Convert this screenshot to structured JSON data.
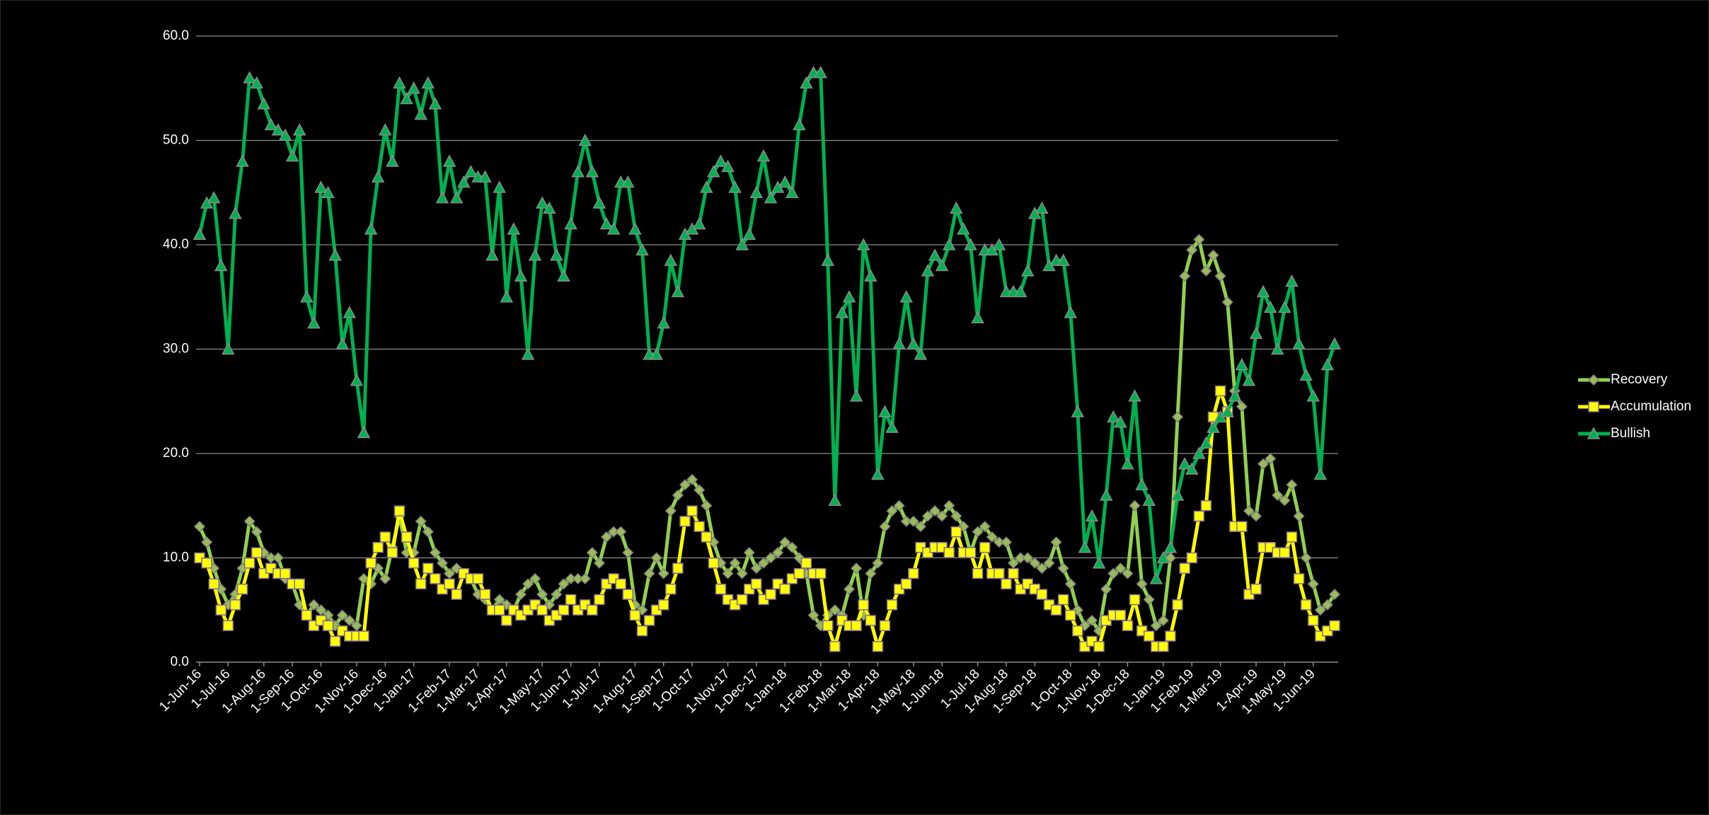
{
  "chart_data": {
    "type": "line",
    "grid": true,
    "legend": "right",
    "ylim": [
      0,
      60
    ],
    "yticks": [
      {
        "value": 0,
        "label": "0.0"
      },
      {
        "value": 10,
        "label": "10.0"
      },
      {
        "value": 20,
        "label": "20.0"
      },
      {
        "value": 30,
        "label": "30.0"
      },
      {
        "value": 40,
        "label": "40.0"
      },
      {
        "value": 50,
        "label": "50.0"
      },
      {
        "value": 60,
        "label": "60.0"
      }
    ],
    "categories": [
      "1-Jun-16",
      null,
      null,
      null,
      "1-Jul-16",
      null,
      null,
      null,
      null,
      "1-Aug-16",
      null,
      null,
      null,
      "1-Sep-16",
      null,
      null,
      null,
      "1-Oct-16",
      null,
      null,
      null,
      null,
      "1-Nov-16",
      null,
      null,
      null,
      "1-Dec-16",
      null,
      null,
      null,
      "1-Jan-17",
      null,
      null,
      null,
      null,
      "1-Feb-17",
      null,
      null,
      null,
      "1-Mar-17",
      null,
      null,
      null,
      "1-Apr-17",
      null,
      null,
      null,
      null,
      "1-May-17",
      null,
      null,
      null,
      "1-Jun-17",
      null,
      null,
      null,
      "1-Jul-17",
      null,
      null,
      null,
      null,
      "1-Aug-17",
      null,
      null,
      null,
      "1-Sep-17",
      null,
      null,
      null,
      "1-Oct-17",
      null,
      null,
      null,
      null,
      "1-Nov-17",
      null,
      null,
      null,
      "1-Dec-17",
      null,
      null,
      null,
      "1-Jan-18",
      null,
      null,
      null,
      null,
      "1-Feb-18",
      null,
      null,
      null,
      "1-Mar-18",
      null,
      null,
      null,
      "1-Apr-18",
      null,
      null,
      null,
      null,
      "1-May-18",
      null,
      null,
      null,
      "1-Jun-18",
      null,
      null,
      null,
      null,
      "1-Jul-18",
      null,
      null,
      null,
      "1-Aug-18",
      null,
      null,
      null,
      "1-Sep-18",
      null,
      null,
      null,
      null,
      "1-Oct-18",
      null,
      null,
      null,
      "1-Nov-18",
      null,
      null,
      null,
      "1-Dec-18",
      null,
      null,
      null,
      null,
      "1-Jan-19",
      null,
      null,
      null,
      "1-Feb-19",
      null,
      null,
      null,
      "1-Mar-19",
      null,
      null,
      null,
      null,
      "1-Apr-19",
      null,
      null,
      null,
      "1-May-19",
      null,
      null,
      null,
      "1-Jun-19",
      null,
      null,
      null
    ],
    "series": [
      {
        "name": "Recovery",
        "color": "#92d050",
        "marker": "diamond",
        "marker_color": "#9bbb59",
        "marker_edge": "#7f7f7f",
        "values": [
          13,
          11.5,
          9,
          7,
          5.5,
          6.5,
          9,
          13.5,
          12.5,
          10.5,
          10,
          10,
          8,
          7.5,
          5.5,
          4.5,
          5.5,
          5,
          4.5,
          3.5,
          4.5,
          4,
          3.5,
          8,
          7.5,
          9,
          8,
          11,
          14,
          10.5,
          10.5,
          13.5,
          12.5,
          10.5,
          9.5,
          8.5,
          9,
          8.5,
          8,
          6.5,
          6,
          5,
          6,
          5.5,
          5,
          6.5,
          7.5,
          8,
          6.5,
          5.5,
          6.5,
          7.5,
          8,
          8,
          8,
          10.5,
          9.5,
          12,
          12.5,
          12.5,
          10.5,
          5.5,
          5,
          8.5,
          10,
          8.5,
          14.5,
          16,
          17,
          17.5,
          16.5,
          15,
          11.5,
          9.5,
          8.5,
          9.5,
          8.5,
          10.5,
          9,
          9.5,
          10,
          10.5,
          11.5,
          11,
          10,
          8.5,
          4.5,
          3.5,
          4.5,
          5,
          4.5,
          7,
          9,
          4.5,
          8.5,
          9.5,
          13,
          14.5,
          15,
          13.5,
          13.5,
          13,
          14,
          14.5,
          14,
          15,
          14,
          13,
          10.5,
          12.5,
          13,
          12,
          11.5,
          11.5,
          9.5,
          10,
          10,
          9.5,
          9,
          9.5,
          11.5,
          9,
          7.5,
          5,
          3.5,
          4,
          3,
          7,
          8.5,
          9,
          8.5,
          15,
          7.5,
          6,
          3.5,
          4,
          10,
          23.5,
          37,
          39.5,
          40.5,
          37.5,
          39,
          37,
          34.5,
          26,
          24.5,
          14.5,
          14,
          19,
          19.5,
          16,
          15.5,
          17,
          14,
          10,
          7.5,
          5,
          5.5,
          6.5
        ]
      },
      {
        "name": "Accumulation",
        "color": "#ffff00",
        "marker": "square",
        "marker_color": "#ffff00",
        "marker_edge": "#8064a2",
        "values": [
          10,
          9.5,
          7.5,
          5,
          3.5,
          5.5,
          7,
          9.5,
          10.5,
          8.5,
          9,
          8.5,
          8.5,
          7.5,
          7.5,
          4.5,
          3.5,
          4,
          3.5,
          2,
          3,
          2.5,
          2.5,
          2.5,
          9.5,
          11,
          12,
          10.5,
          14.5,
          12,
          9.5,
          7.5,
          9,
          8,
          7,
          7.5,
          6.5,
          8.5,
          8,
          8,
          6.5,
          5,
          5,
          4,
          5,
          4.5,
          5,
          5.5,
          5,
          4,
          4.5,
          5,
          6,
          5,
          5.5,
          5,
          6,
          7.5,
          8,
          7.5,
          6.5,
          4.5,
          3,
          4,
          5,
          5.5,
          7,
          9,
          13.5,
          14.5,
          13,
          12,
          9.5,
          7,
          6,
          5.5,
          6,
          7,
          7.5,
          6,
          6.5,
          7.5,
          7,
          8,
          8.5,
          9.5,
          8.5,
          8.5,
          3.5,
          1.5,
          4,
          3.5,
          3.5,
          5.5,
          4,
          1.5,
          3.5,
          5.5,
          7,
          7.5,
          8.5,
          11,
          10.5,
          11,
          11,
          10.5,
          12.5,
          10.5,
          10.5,
          8.5,
          11,
          8.5,
          8.5,
          7.5,
          8.5,
          7,
          7.5,
          7,
          6.5,
          5.5,
          5,
          6,
          4.5,
          3,
          1.5,
          2,
          1.5,
          4,
          4.5,
          4.5,
          3.5,
          6,
          3,
          2.5,
          1.5,
          1.5,
          2.5,
          5.5,
          9,
          10,
          14,
          15,
          23.5,
          26,
          24,
          13,
          13,
          6.5,
          7,
          11,
          11,
          10.5,
          10.5,
          12,
          8,
          5.5,
          4,
          2.5,
          3,
          3.5
        ]
      },
      {
        "name": "Bullish",
        "color": "#00b050",
        "marker": "triangle",
        "marker_color": "#00b050",
        "marker_edge": "#8c8c8c",
        "values": [
          41,
          44,
          44.5,
          38,
          30,
          43,
          48,
          56,
          55.5,
          53.5,
          51.5,
          51,
          50.5,
          48.5,
          51,
          35,
          32.5,
          45.5,
          45,
          39,
          30.5,
          33.5,
          27,
          22,
          41.5,
          46.5,
          51,
          48,
          55.5,
          54,
          55,
          52.5,
          55.5,
          53.5,
          44.5,
          48,
          44.5,
          46,
          47,
          46.5,
          46.5,
          39,
          45.5,
          35,
          41.5,
          37,
          29.5,
          39,
          44,
          43.5,
          39,
          37,
          42,
          47,
          50,
          47,
          44,
          42,
          41.5,
          46,
          46,
          41.5,
          39.5,
          29.5,
          29.5,
          32.5,
          38.5,
          35.5,
          41,
          41.5,
          42,
          45.5,
          47,
          48,
          47.5,
          45.5,
          40,
          41,
          45,
          48.5,
          44.5,
          45.5,
          46,
          45,
          51.5,
          55.5,
          56.5,
          56.5,
          38.5,
          15.5,
          33.5,
          35,
          25.5,
          40,
          37,
          18,
          24,
          22.5,
          30.5,
          35,
          30.5,
          29.5,
          37.5,
          39,
          38,
          40,
          43.5,
          41.5,
          40,
          33,
          39.5,
          39.5,
          40,
          35.5,
          35.5,
          35.5,
          37.5,
          43,
          43.5,
          38,
          38.5,
          38.5,
          33.5,
          24,
          11,
          14,
          9.5,
          16,
          23.5,
          23,
          19,
          25.5,
          17,
          15.5,
          8,
          10,
          11,
          16,
          19,
          18.5,
          20,
          21,
          22.5,
          23.5,
          24,
          25.5,
          28.5,
          27,
          31.5,
          35.5,
          34,
          30,
          34,
          36.5,
          30.5,
          27.5,
          25.5,
          18,
          28.5,
          30.5
        ]
      }
    ]
  }
}
